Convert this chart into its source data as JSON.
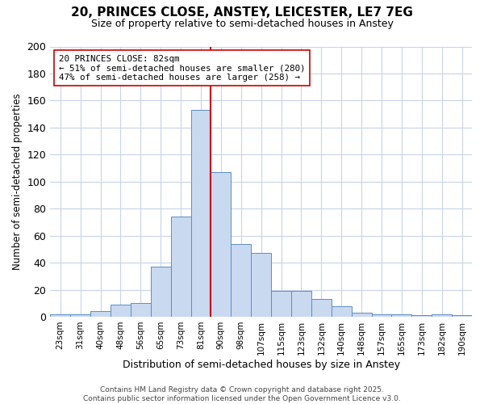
{
  "title": "20, PRINCES CLOSE, ANSTEY, LEICESTER, LE7 7EG",
  "subtitle": "Size of property relative to semi-detached houses in Anstey",
  "xlabel": "Distribution of semi-detached houses by size in Anstey",
  "ylabel": "Number of semi-detached properties",
  "bar_labels": [
    "23sqm",
    "31sqm",
    "40sqm",
    "48sqm",
    "56sqm",
    "65sqm",
    "73sqm",
    "81sqm",
    "90sqm",
    "98sqm",
    "107sqm",
    "115sqm",
    "123sqm",
    "132sqm",
    "140sqm",
    "148sqm",
    "157sqm",
    "165sqm",
    "173sqm",
    "182sqm",
    "190sqm"
  ],
  "bar_values": [
    2,
    2,
    4,
    9,
    10,
    37,
    74,
    153,
    107,
    54,
    47,
    19,
    19,
    13,
    8,
    3,
    2,
    2,
    1,
    2,
    1
  ],
  "bar_color": "#c9d9f0",
  "bar_edge_color": "#5b8ec5",
  "marker_bin_index": 7,
  "marker_color": "#cc0000",
  "annotation_text": "20 PRINCES CLOSE: 82sqm\n← 51% of semi-detached houses are smaller (280)\n47% of semi-detached houses are larger (258) →",
  "annotation_box_color": "#ffffff",
  "annotation_box_edge": "#cc0000",
  "ylim": [
    0,
    200
  ],
  "yticks": [
    0,
    20,
    40,
    60,
    80,
    100,
    120,
    140,
    160,
    180,
    200
  ],
  "footer_text": "Contains HM Land Registry data © Crown copyright and database right 2025.\nContains public sector information licensed under the Open Government Licence v3.0.",
  "background_color": "#ffffff",
  "grid_color": "#c8d4e8",
  "title_fontsize": 11,
  "subtitle_fontsize": 9
}
